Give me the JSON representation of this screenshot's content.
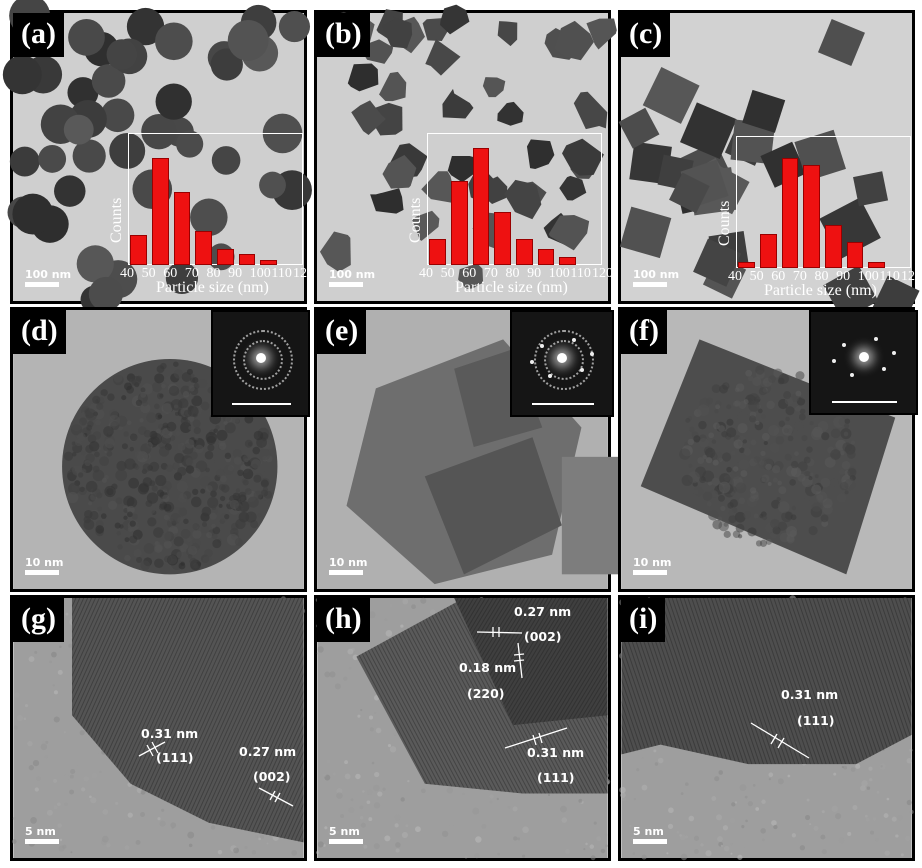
{
  "colors": {
    "histogram_bar": "#ee1111",
    "background_text": "#ffffff"
  },
  "panels": [
    {
      "key": "a",
      "label": "(a)",
      "scale": "100 nm",
      "texture": "np-spheres",
      "histogram": {
        "ylabel": "Counts",
        "xlabel": "Particle size (nm)",
        "ticks": [
          "40",
          "50",
          "60",
          "70",
          "80",
          "90",
          "100",
          "110",
          "120"
        ],
        "values": [
          0.24,
          0.85,
          0.58,
          0.27,
          0.13,
          0.09,
          0.04
        ]
      }
    },
    {
      "key": "b",
      "label": "(b)",
      "scale": "100 nm",
      "texture": "np-faceted",
      "histogram": {
        "ylabel": "Counts",
        "xlabel": "Particle size (nm)",
        "ticks": [
          "40",
          "50",
          "60",
          "70",
          "80",
          "90",
          "100",
          "110",
          "120"
        ],
        "values": [
          0.21,
          0.67,
          0.93,
          0.42,
          0.21,
          0.13,
          0.06
        ]
      }
    },
    {
      "key": "c",
      "label": "(c)",
      "scale": "100 nm",
      "texture": "np-cubes",
      "histogram": {
        "ylabel": "Counts",
        "xlabel": "Particle size (nm)",
        "ticks": [
          "40",
          "50",
          "60",
          "70",
          "80",
          "90",
          "100",
          "110",
          "120"
        ],
        "values": [
          0.05,
          0.27,
          0.87,
          0.82,
          0.34,
          0.21,
          0.05
        ]
      }
    },
    {
      "key": "d",
      "label": "(d)",
      "scale": "10 nm",
      "texture": "single-sphere",
      "fft": "rings"
    },
    {
      "key": "e",
      "label": "(e)",
      "scale": "10 nm",
      "texture": "single-faceted",
      "fft": "rings-spots"
    },
    {
      "key": "f",
      "label": "(f)",
      "scale": "10 nm",
      "texture": "single-cube",
      "fft": "spots"
    },
    {
      "key": "g",
      "label": "(g)",
      "scale": "5 nm",
      "texture": "lattice-g",
      "annotations": [
        {
          "d": "0.31 nm",
          "hkl": "(111)"
        },
        {
          "d": "0.27 nm",
          "hkl": "(002)"
        }
      ]
    },
    {
      "key": "h",
      "label": "(h)",
      "scale": "5 nm",
      "texture": "lattice-h",
      "annotations": [
        {
          "d": "0.27 nm",
          "hkl": "(002)"
        },
        {
          "d": "0.18 nm",
          "hkl": "(220)"
        },
        {
          "d": "0.31 nm",
          "hkl": "(111)"
        }
      ]
    },
    {
      "key": "i",
      "label": "(i)",
      "scale": "5 nm",
      "texture": "lattice-i",
      "annotations": [
        {
          "d": "0.31 nm",
          "hkl": "(111)"
        }
      ]
    }
  ]
}
